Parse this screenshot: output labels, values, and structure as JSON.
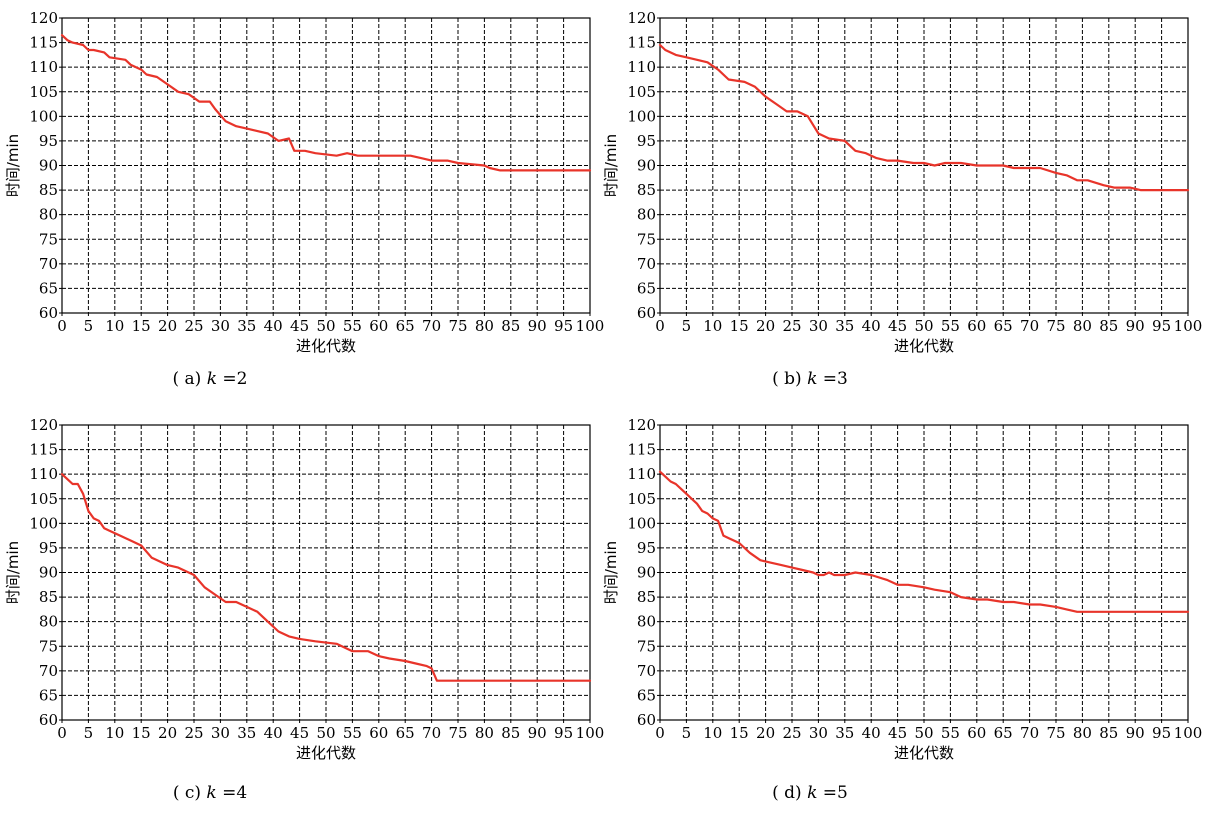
{
  "chart_data": [
    {
      "type": "line",
      "caption": "( a)  k = 2",
      "caption_parts": [
        "( a)  ",
        "k",
        " =2"
      ],
      "xlabel": "进化代数",
      "ylabel": "时间/min",
      "xlim": [
        0,
        100
      ],
      "ylim": [
        60,
        120
      ],
      "xticks": [
        0,
        5,
        10,
        15,
        20,
        25,
        30,
        35,
        40,
        45,
        50,
        55,
        60,
        65,
        70,
        75,
        80,
        85,
        90,
        95,
        100
      ],
      "yticks": [
        60,
        65,
        70,
        75,
        80,
        85,
        90,
        95,
        100,
        105,
        110,
        115,
        120
      ],
      "grid": true,
      "color": "#e8342a",
      "x": [
        0,
        1,
        2,
        4,
        5,
        6,
        8,
        9,
        12,
        13,
        15,
        16,
        18,
        20,
        22,
        24,
        26,
        28,
        29,
        31,
        33,
        35,
        37,
        39,
        41,
        43,
        44,
        46,
        48,
        52,
        54,
        56,
        60,
        64,
        66,
        68,
        70,
        73,
        75,
        80,
        81,
        83,
        100
      ],
      "y": [
        116.5,
        115.5,
        115,
        114.5,
        113.5,
        113.5,
        113,
        112,
        111.5,
        110.5,
        109.5,
        108.5,
        108,
        106.5,
        105,
        104.5,
        103,
        103,
        101.5,
        99,
        98,
        97.5,
        97,
        96.5,
        95,
        95.5,
        93,
        93,
        92.5,
        92,
        92.5,
        92,
        92,
        92,
        92,
        91.5,
        91,
        91,
        90.5,
        90,
        89.5,
        89,
        89
      ]
    },
    {
      "type": "line",
      "caption": "( b)  k = 3",
      "caption_parts": [
        "( b)  ",
        "k",
        " =3"
      ],
      "xlabel": "进化代数",
      "ylabel": "时间/min",
      "xlim": [
        0,
        100
      ],
      "ylim": [
        60,
        120
      ],
      "xticks": [
        0,
        5,
        10,
        15,
        20,
        25,
        30,
        35,
        40,
        45,
        50,
        55,
        60,
        65,
        70,
        75,
        80,
        85,
        90,
        95,
        100
      ],
      "yticks": [
        60,
        65,
        70,
        75,
        80,
        85,
        90,
        95,
        100,
        105,
        110,
        115,
        120
      ],
      "grid": true,
      "color": "#e8342a",
      "x": [
        0,
        1,
        3,
        5,
        7,
        9,
        11,
        13,
        16,
        18,
        20,
        22,
        24,
        26,
        28,
        30,
        32,
        35,
        37,
        39,
        41,
        43,
        45,
        48,
        50,
        52,
        54,
        57,
        60,
        63,
        65,
        67,
        69,
        72,
        75,
        77,
        79,
        81,
        84,
        86,
        89,
        91,
        93,
        100
      ],
      "y": [
        114.5,
        113.5,
        112.5,
        112,
        111.5,
        111,
        109.5,
        107.5,
        107,
        106,
        104,
        102.5,
        101,
        101,
        100,
        96.5,
        95.5,
        95,
        93,
        92.5,
        91.5,
        91,
        91,
        90.5,
        90.5,
        90,
        90.5,
        90.5,
        90,
        90,
        90,
        89.5,
        89.5,
        89.5,
        88.5,
        88,
        87,
        87,
        86,
        85.5,
        85.5,
        85,
        85,
        85
      ]
    },
    {
      "type": "line",
      "caption": "( c)  k = 4",
      "caption_parts": [
        "( c)  ",
        "k",
        " =4"
      ],
      "xlabel": "进化代数",
      "ylabel": "时间/min",
      "xlim": [
        0,
        100
      ],
      "ylim": [
        60,
        120
      ],
      "xticks": [
        0,
        5,
        10,
        15,
        20,
        25,
        30,
        35,
        40,
        45,
        50,
        55,
        60,
        65,
        70,
        75,
        80,
        85,
        90,
        95,
        100
      ],
      "yticks": [
        60,
        65,
        70,
        75,
        80,
        85,
        90,
        95,
        100,
        105,
        110,
        115,
        120
      ],
      "grid": true,
      "color": "#e8342a",
      "x": [
        0,
        1,
        2,
        3,
        4,
        5,
        6,
        7,
        8,
        9,
        11,
        13,
        15,
        17,
        20,
        22,
        25,
        27,
        29,
        31,
        33,
        35,
        37,
        39,
        41,
        43,
        45,
        48,
        52,
        54,
        55,
        56,
        57,
        58,
        60,
        62,
        65,
        67,
        69,
        70,
        71,
        72,
        74,
        100
      ],
      "y": [
        110,
        109,
        108,
        108,
        106,
        102.5,
        101,
        100.5,
        99,
        98.5,
        97.5,
        96.5,
        95.5,
        93,
        91.5,
        91,
        89.5,
        87,
        85.5,
        84,
        84,
        83,
        82,
        80,
        78,
        77,
        76.5,
        76,
        75.5,
        74.5,
        74,
        74,
        74,
        74,
        73,
        72.5,
        72,
        71.5,
        71,
        70.5,
        68,
        68,
        68,
        68
      ]
    },
    {
      "type": "line",
      "caption": "( d)  k = 5",
      "caption_parts": [
        "( d)  ",
        "k",
        " =5"
      ],
      "xlabel": "进化代数",
      "ylabel": "时间/min",
      "xlim": [
        0,
        100
      ],
      "ylim": [
        60,
        120
      ],
      "xticks": [
        0,
        5,
        10,
        15,
        20,
        25,
        30,
        35,
        40,
        45,
        50,
        55,
        60,
        65,
        70,
        75,
        80,
        85,
        90,
        95,
        100
      ],
      "yticks": [
        60,
        65,
        70,
        75,
        80,
        85,
        90,
        95,
        100,
        105,
        110,
        115,
        120
      ],
      "grid": true,
      "color": "#e8342a",
      "x": [
        0,
        1,
        2,
        3,
        4,
        5,
        6,
        7,
        8,
        9,
        10,
        11,
        12,
        13,
        15,
        17,
        19,
        21,
        23,
        25,
        27,
        29,
        30,
        31,
        32,
        33,
        35,
        37,
        40,
        43,
        45,
        47,
        50,
        52,
        55,
        57,
        60,
        62,
        65,
        67,
        70,
        72,
        75,
        77,
        79,
        100
      ],
      "y": [
        110.5,
        109.5,
        108.5,
        108,
        107,
        106,
        105,
        104,
        102.5,
        102,
        101,
        100.5,
        97.5,
        97,
        96,
        94,
        92.5,
        92,
        91.5,
        91,
        90.5,
        90,
        89.5,
        89.5,
        90,
        89.5,
        89.5,
        90,
        89.5,
        88.5,
        87.5,
        87.5,
        87,
        86.5,
        86,
        85,
        84.5,
        84.5,
        84,
        84,
        83.5,
        83.5,
        83,
        82.5,
        82,
        82
      ]
    }
  ]
}
